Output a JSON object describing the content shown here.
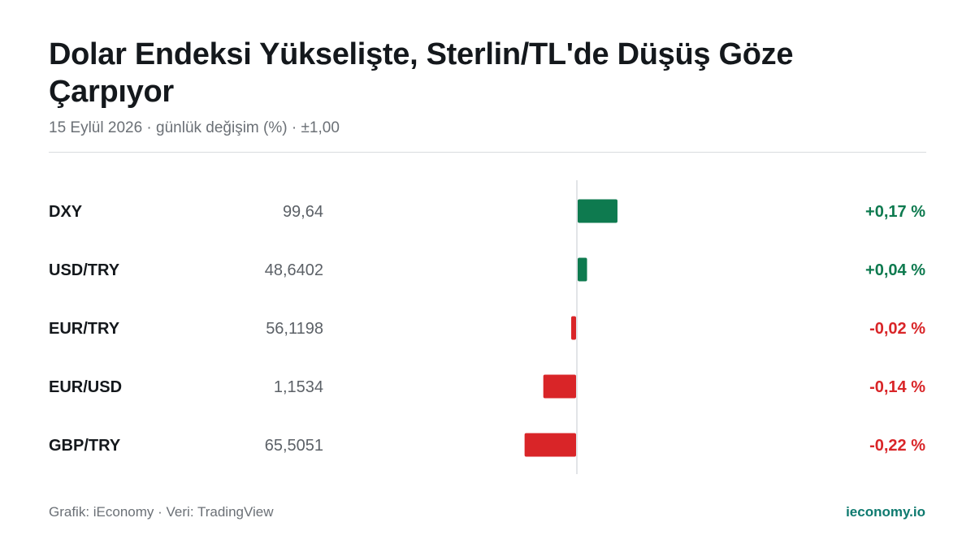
{
  "header": {
    "title": "Dolar Endeksi Yükselişte, Sterlin/TL'de Düşüş Göze Çarpıyor",
    "subtitle": "15 Eylül 2026 · günlük değişim (%) · ±1,00"
  },
  "footer": {
    "credit": "Grafik: iEconomy · Veri: TradingView",
    "brand": "ieconomy.io"
  },
  "colors": {
    "positive": "#0e7a4f",
    "negative": "#d92528",
    "brand": "#0e7a6f",
    "axis": "#d9dcdf"
  },
  "chart_data": {
    "type": "bar",
    "orientation": "horizontal",
    "categories": [
      "DXY",
      "USD/TRY",
      "EUR/TRY",
      "EUR/USD",
      "GBP/TRY"
    ],
    "prices": [
      "99,64",
      "48,6402",
      "56,1198",
      "1,1534",
      "65,5051"
    ],
    "values": [
      0.17,
      0.04,
      -0.02,
      -0.14,
      -0.22
    ],
    "change_labels": [
      "+0,17 %",
      "+0,04 %",
      "-0,02 %",
      "-0,14 %",
      "-0,22 %"
    ],
    "xlim": [
      -1,
      1
    ],
    "grid": false,
    "legend": "none"
  }
}
